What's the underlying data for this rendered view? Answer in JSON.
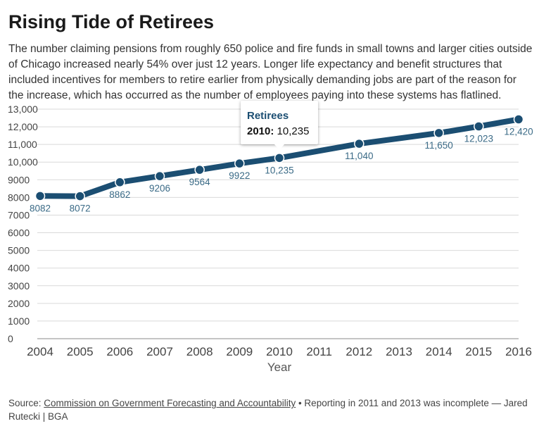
{
  "header": {
    "title": "Rising Tide of Retirees",
    "subtitle": "The number claiming pensions from roughly 650 police and fire funds in small towns and larger cities outside of Chicago increased nearly 54% over just 12 years. Longer life expectancy and benefit structures that included incentives for members to retire earlier from physically demanding jobs are part of the reason for the increase, which has occurred as the number of employees paying into these systems has flatlined."
  },
  "tooltip": {
    "series": "Retirees",
    "year": "2010:",
    "value": "10,235"
  },
  "footer": {
    "source_prefix": "Source: ",
    "source_link": "Commission on Government Forecasting and Accountability",
    "source_note": " • Reporting in 2011 and 2013 was incomplete — Jared Rutecki | BGA"
  },
  "colors": {
    "line": "#1b4e72",
    "label": "#3a6a86",
    "grid": "#d9d9d9"
  },
  "chart_data": {
    "type": "line",
    "title": "Rising Tide of Retirees",
    "xlabel": "Year",
    "ylabel": "",
    "x": [
      2004,
      2005,
      2006,
      2007,
      2008,
      2009,
      2010,
      2011,
      2012,
      2013,
      2014,
      2015,
      2016
    ],
    "x_ticks": [
      "2004",
      "2005",
      "2006",
      "2007",
      "2008",
      "2009",
      "2010",
      "2011",
      "2012",
      "2013",
      "2014",
      "2015",
      "2016"
    ],
    "ylim": [
      0,
      13000
    ],
    "y_ticks": [
      "0",
      "1000",
      "2000",
      "3000",
      "4000",
      "5000",
      "6000",
      "7000",
      "8000",
      "9000",
      "10,000",
      "11,000",
      "12,000",
      "13,000"
    ],
    "grid": true,
    "series": [
      {
        "name": "Retirees",
        "points": [
          {
            "x": 2004,
            "y": 8082,
            "label": "8082"
          },
          {
            "x": 2005,
            "y": 8072,
            "label": "8072"
          },
          {
            "x": 2006,
            "y": 8862,
            "label": "8862"
          },
          {
            "x": 2007,
            "y": 9206,
            "label": "9206"
          },
          {
            "x": 2008,
            "y": 9564,
            "label": "9564"
          },
          {
            "x": 2009,
            "y": 9922,
            "label": "9922"
          },
          {
            "x": 2010,
            "y": 10235,
            "label": "10,235"
          },
          {
            "x": 2012,
            "y": 11040,
            "label": "11,040"
          },
          {
            "x": 2014,
            "y": 11650,
            "label": "11,650"
          },
          {
            "x": 2015,
            "y": 12023,
            "label": "12,023"
          },
          {
            "x": 2016,
            "y": 12420,
            "label": "12,420"
          }
        ]
      }
    ]
  }
}
